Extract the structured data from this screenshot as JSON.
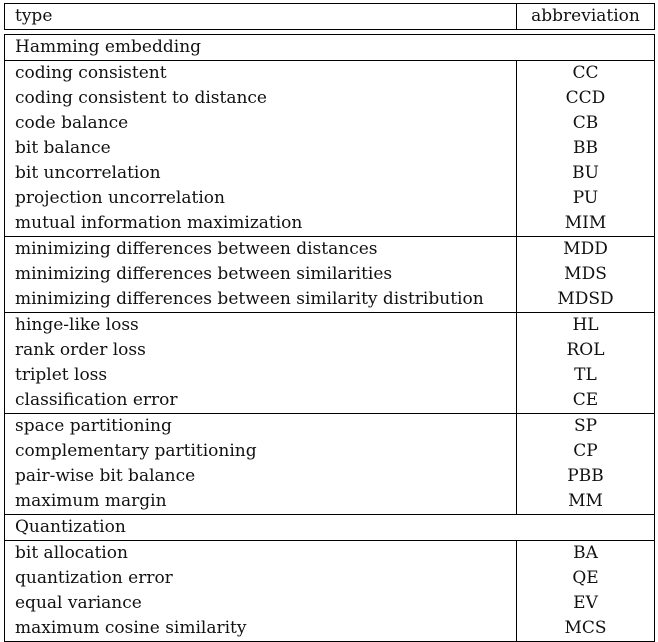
{
  "header": {
    "type": "type",
    "abbreviation": "abbreviation"
  },
  "sections": [
    {
      "title": "Hamming embedding",
      "groups": [
        [
          {
            "type": "coding consistent",
            "abbr": "CC"
          },
          {
            "type": "coding consistent to distance",
            "abbr": "CCD"
          },
          {
            "type": "code balance",
            "abbr": "CB"
          },
          {
            "type": "bit balance",
            "abbr": "BB"
          },
          {
            "type": "bit uncorrelation",
            "abbr": "BU"
          },
          {
            "type": "projection uncorrelation",
            "abbr": "PU"
          },
          {
            "type": "mutual information maximization",
            "abbr": "MIM"
          }
        ],
        [
          {
            "type": "minimizing differences between distances",
            "abbr": "MDD"
          },
          {
            "type": "minimizing differences between similarities",
            "abbr": "MDS"
          },
          {
            "type": "minimizing differences between similarity distribution",
            "abbr": "MDSD"
          }
        ],
        [
          {
            "type": "hinge-like loss",
            "abbr": "HL"
          },
          {
            "type": "rank order loss",
            "abbr": "ROL"
          },
          {
            "type": "triplet loss",
            "abbr": "TL"
          },
          {
            "type": "classification error",
            "abbr": "CE"
          }
        ],
        [
          {
            "type": "space partitioning",
            "abbr": "SP"
          },
          {
            "type": "complementary partitioning",
            "abbr": "CP"
          },
          {
            "type": "pair-wise bit balance",
            "abbr": "PBB"
          },
          {
            "type": "maximum margin",
            "abbr": "MM"
          }
        ]
      ]
    },
    {
      "title": "Quantization",
      "groups": [
        [
          {
            "type": "bit allocation",
            "abbr": "BA"
          },
          {
            "type": "quantization error",
            "abbr": "QE"
          },
          {
            "type": "equal variance",
            "abbr": "EV"
          },
          {
            "type": "maximum cosine similarity",
            "abbr": "MCS"
          }
        ]
      ]
    }
  ]
}
